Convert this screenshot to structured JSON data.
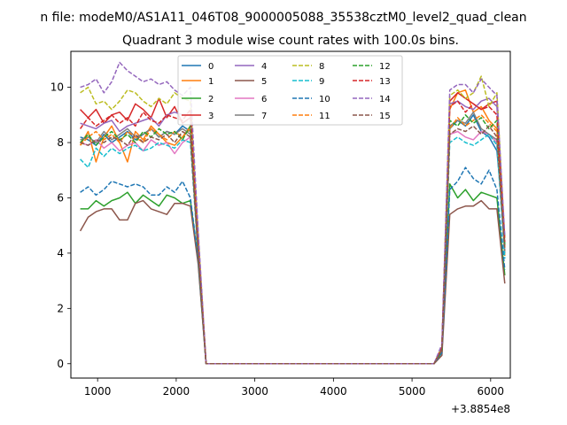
{
  "chart_data": {
    "type": "line",
    "suptitle": "n file: modeM0/AS1A11_046T08_9000005088_35538cztM0_level2_quad_clean",
    "title": "Quadrant 3 module wise count rates with 100.0s bins.",
    "offset_label": "+3.8854e8",
    "xlim": [
      660,
      6250
    ],
    "ylim": [
      -0.52,
      11.3
    ],
    "xticks": [
      1000,
      2000,
      3000,
      4000,
      5000,
      6000
    ],
    "xtick_labels": [
      "1000",
      "2000",
      "3000",
      "4000",
      "5000",
      "6000"
    ],
    "yticks": [
      0,
      2,
      4,
      6,
      8,
      10
    ],
    "ytick_labels": [
      "0",
      "2",
      "4",
      "6",
      "8",
      "10"
    ],
    "legend_position": "upper-center",
    "colors": [
      "#1f77b4",
      "#ff7f0e",
      "#2ca02c",
      "#d62728",
      "#9467bd",
      "#8c564b",
      "#e377c2",
      "#7f7f7f",
      "#bcbd22",
      "#17becf",
      "#1f77b4",
      "#ff7f0e",
      "#2ca02c",
      "#d62728",
      "#9467bd",
      "#8c564b"
    ],
    "x": [
      780,
      880,
      980,
      1080,
      1180,
      1280,
      1380,
      1480,
      1580,
      1680,
      1780,
      1880,
      1980,
      2080,
      2180,
      2280,
      2380,
      2480,
      2580,
      2680,
      2780,
      2880,
      2980,
      3080,
      3180,
      3280,
      3380,
      3480,
      3580,
      3680,
      3780,
      3880,
      3980,
      4080,
      4180,
      4280,
      4380,
      4480,
      4580,
      4680,
      4780,
      4880,
      4980,
      5080,
      5180,
      5280,
      5380,
      5480,
      5580,
      5680,
      5780,
      5880,
      5980,
      6080,
      6180
    ],
    "series": [
      {
        "name": "0",
        "dashed": false,
        "values": [
          8.2,
          8.1,
          7.9,
          8.3,
          8.0,
          8.2,
          8.4,
          8.1,
          8.3,
          8.5,
          8.2,
          8.4,
          8.3,
          8.6,
          8.4,
          4.0,
          0,
          0,
          0,
          0,
          0,
          0,
          0,
          0,
          0,
          0,
          0,
          0,
          0,
          0,
          0,
          0,
          0,
          0,
          0,
          0,
          0,
          0,
          0,
          0,
          0,
          0,
          0,
          0,
          0,
          0,
          0.5,
          8.5,
          8.8,
          8.6,
          9.0,
          8.4,
          8.2,
          7.7,
          4.6
        ]
      },
      {
        "name": "1",
        "dashed": false,
        "values": [
          7.9,
          8.4,
          7.3,
          8.2,
          8.6,
          8.0,
          7.3,
          8.4,
          8.1,
          8.6,
          8.3,
          8.0,
          7.9,
          8.2,
          8.6,
          4.2,
          0,
          0,
          0,
          0,
          0,
          0,
          0,
          0,
          0,
          0,
          0,
          0,
          0,
          0,
          0,
          0,
          0,
          0,
          0,
          0,
          0,
          0,
          0,
          0,
          0,
          0,
          0,
          0,
          0,
          0,
          0.6,
          9.2,
          9.8,
          9.9,
          9.1,
          9.3,
          8.8,
          8.5,
          3.9
        ]
      },
      {
        "name": "2",
        "dashed": false,
        "values": [
          5.6,
          5.6,
          5.9,
          5.7,
          5.9,
          6.0,
          6.2,
          5.8,
          6.1,
          5.9,
          5.7,
          6.1,
          6.0,
          5.8,
          5.9,
          3.7,
          0,
          0,
          0,
          0,
          0,
          0,
          0,
          0,
          0,
          0,
          0,
          0,
          0,
          0,
          0,
          0,
          0,
          0,
          0,
          0,
          0,
          0,
          0,
          0,
          0,
          0,
          0,
          0,
          0,
          0,
          0.4,
          6.5,
          6.0,
          6.3,
          5.9,
          6.2,
          6.1,
          6.0,
          3.2
        ]
      },
      {
        "name": "3",
        "dashed": false,
        "values": [
          9.2,
          8.9,
          9.2,
          8.7,
          9.0,
          9.1,
          8.8,
          9.4,
          9.2,
          8.9,
          9.6,
          8.9,
          9.3,
          8.7,
          8.9,
          4.5,
          0,
          0,
          0,
          0,
          0,
          0,
          0,
          0,
          0,
          0,
          0,
          0,
          0,
          0,
          0,
          0,
          0,
          0,
          0,
          0,
          0,
          0,
          0,
          0,
          0,
          0,
          0,
          0,
          0,
          0,
          0.6,
          9.5,
          9.8,
          9.6,
          9.4,
          9.2,
          9.4,
          9.5,
          4.2
        ]
      },
      {
        "name": "4",
        "dashed": false,
        "values": [
          8.7,
          8.6,
          8.5,
          8.7,
          8.8,
          8.4,
          8.6,
          8.7,
          8.8,
          8.9,
          8.6,
          9.0,
          9.1,
          9.0,
          9.0,
          4.5,
          0,
          0,
          0,
          0,
          0,
          0,
          0,
          0,
          0,
          0,
          0,
          0,
          0,
          0,
          0,
          0,
          0,
          0,
          0,
          0,
          0,
          0,
          0,
          0,
          0,
          0,
          0,
          0,
          0,
          0,
          0.6,
          9.4,
          9.5,
          9.3,
          9.2,
          9.5,
          9.6,
          9.3,
          4.3
        ]
      },
      {
        "name": "5",
        "dashed": false,
        "values": [
          4.8,
          5.3,
          5.5,
          5.6,
          5.6,
          5.2,
          5.2,
          5.8,
          5.9,
          5.6,
          5.5,
          5.4,
          5.8,
          5.8,
          5.7,
          3.6,
          0,
          0,
          0,
          0,
          0,
          0,
          0,
          0,
          0,
          0,
          0,
          0,
          0,
          0,
          0,
          0,
          0,
          0,
          0,
          0,
          0,
          0,
          0,
          0,
          0,
          0,
          0,
          0,
          0,
          0,
          0.3,
          5.4,
          5.6,
          5.7,
          5.7,
          5.9,
          5.6,
          5.6,
          2.9
        ]
      },
      {
        "name": "6",
        "dashed": false,
        "values": [
          8.0,
          7.9,
          8.1,
          7.8,
          8.0,
          7.7,
          7.9,
          8.0,
          7.7,
          8.1,
          7.9,
          8.0,
          7.6,
          8.0,
          8.2,
          4.0,
          0,
          0,
          0,
          0,
          0,
          0,
          0,
          0,
          0,
          0,
          0,
          0,
          0,
          0,
          0,
          0,
          0,
          0,
          0,
          0,
          0,
          0,
          0,
          0,
          0,
          0,
          0,
          0,
          0,
          0,
          0.5,
          8.3,
          8.4,
          8.2,
          8.1,
          8.4,
          8.3,
          8.0,
          4.1
        ]
      },
      {
        "name": "7",
        "dashed": false,
        "values": [
          8.1,
          8.2,
          8.0,
          8.4,
          8.1,
          8.3,
          8.5,
          8.2,
          8.3,
          8.5,
          8.2,
          8.4,
          8.3,
          8.5,
          8.3,
          4.0,
          0,
          0,
          0,
          0,
          0,
          0,
          0,
          0,
          0,
          0,
          0,
          0,
          0,
          0,
          0,
          0,
          0,
          0,
          0,
          0,
          0,
          0,
          0,
          0,
          0,
          0,
          0,
          0,
          0,
          0,
          0.5,
          8.6,
          8.8,
          8.7,
          9.1,
          8.5,
          8.3,
          8.1,
          4.0
        ]
      },
      {
        "name": "8",
        "dashed": true,
        "values": [
          9.8,
          10.0,
          9.4,
          9.5,
          9.2,
          9.5,
          9.9,
          9.8,
          9.5,
          9.3,
          9.6,
          9.4,
          9.8,
          9.6,
          9.5,
          4.7,
          0,
          0,
          0,
          0,
          0,
          0,
          0,
          0,
          0,
          0,
          0,
          0,
          0,
          0,
          0,
          0,
          0,
          0,
          0,
          0,
          0,
          0,
          0,
          0,
          0,
          0,
          0,
          0,
          0,
          0,
          0.6,
          9.7,
          9.9,
          9.6,
          9.8,
          10.4,
          9.3,
          9.8,
          4.5
        ]
      },
      {
        "name": "9",
        "dashed": true,
        "values": [
          7.4,
          7.1,
          7.8,
          7.5,
          7.8,
          7.6,
          7.8,
          7.9,
          7.7,
          7.8,
          8.0,
          7.9,
          7.8,
          8.1,
          8.0,
          3.9,
          0,
          0,
          0,
          0,
          0,
          0,
          0,
          0,
          0,
          0,
          0,
          0,
          0,
          0,
          0,
          0,
          0,
          0,
          0,
          0,
          0,
          0,
          0,
          0,
          0,
          0,
          0,
          0,
          0,
          0,
          0.5,
          8.0,
          8.2,
          8.0,
          7.9,
          8.1,
          8.3,
          7.9,
          3.8
        ]
      },
      {
        "name": "10",
        "dashed": true,
        "values": [
          6.2,
          6.4,
          6.1,
          6.3,
          6.6,
          6.5,
          6.4,
          6.5,
          6.4,
          6.1,
          6.1,
          6.4,
          6.2,
          6.6,
          6.0,
          3.8,
          0,
          0,
          0,
          0,
          0,
          0,
          0,
          0,
          0,
          0,
          0,
          0,
          0,
          0,
          0,
          0,
          0,
          0,
          0,
          0,
          0,
          0,
          0,
          0,
          0,
          0,
          0,
          0,
          0,
          0,
          0.4,
          6.3,
          6.6,
          7.1,
          6.7,
          6.5,
          7.0,
          6.3,
          3.4
        ]
      },
      {
        "name": "11",
        "dashed": true,
        "values": [
          7.9,
          8.2,
          8.4,
          8.1,
          8.3,
          8.0,
          8.4,
          8.2,
          8.0,
          8.5,
          8.3,
          8.1,
          8.4,
          8.2,
          8.5,
          4.1,
          0,
          0,
          0,
          0,
          0,
          0,
          0,
          0,
          0,
          0,
          0,
          0,
          0,
          0,
          0,
          0,
          0,
          0,
          0,
          0,
          0,
          0,
          0,
          0,
          0,
          0,
          0,
          0,
          0,
          0,
          0.5,
          8.5,
          8.9,
          8.6,
          8.8,
          9.0,
          8.7,
          8.4,
          4.2
        ]
      },
      {
        "name": "12",
        "dashed": true,
        "values": [
          8.0,
          8.3,
          7.9,
          8.2,
          8.4,
          8.1,
          8.3,
          8.0,
          8.4,
          8.2,
          8.5,
          8.3,
          8.4,
          8.1,
          8.6,
          4.1,
          0,
          0,
          0,
          0,
          0,
          0,
          0,
          0,
          0,
          0,
          0,
          0,
          0,
          0,
          0,
          0,
          0,
          0,
          0,
          0,
          0,
          0,
          0,
          0,
          0,
          0,
          0,
          0,
          0,
          0,
          0.5,
          8.8,
          8.6,
          9.0,
          8.7,
          8.9,
          8.5,
          8.8,
          4.3
        ]
      },
      {
        "name": "13",
        "dashed": true,
        "values": [
          8.5,
          8.9,
          8.6,
          8.8,
          9.0,
          8.7,
          8.9,
          8.6,
          9.1,
          8.8,
          8.7,
          9.0,
          8.9,
          8.8,
          9.2,
          4.4,
          0,
          0,
          0,
          0,
          0,
          0,
          0,
          0,
          0,
          0,
          0,
          0,
          0,
          0,
          0,
          0,
          0,
          0,
          0,
          0,
          0,
          0,
          0,
          0,
          0,
          0,
          0,
          0,
          0,
          0,
          0.6,
          9.3,
          9.5,
          9.1,
          9.4,
          9.2,
          9.3,
          9.0,
          4.4
        ]
      },
      {
        "name": "14",
        "dashed": true,
        "values": [
          10.0,
          10.1,
          10.3,
          9.8,
          10.2,
          10.9,
          10.6,
          10.4,
          10.2,
          10.3,
          10.1,
          10.2,
          9.9,
          9.7,
          10.0,
          4.8,
          0,
          0,
          0,
          0,
          0,
          0,
          0,
          0,
          0,
          0,
          0,
          0,
          0,
          0,
          0,
          0,
          0,
          0,
          0,
          0,
          0,
          0,
          0,
          0,
          0,
          0,
          0,
          0,
          0,
          0,
          0.7,
          9.9,
          10.1,
          10.1,
          9.8,
          10.3,
          10.0,
          9.7,
          4.6
        ]
      },
      {
        "name": "15",
        "dashed": true,
        "values": [
          8.0,
          7.9,
          8.1,
          8.0,
          8.2,
          8.1,
          7.9,
          8.3,
          8.0,
          8.2,
          8.1,
          8.3,
          8.0,
          8.4,
          8.2,
          4.0,
          0,
          0,
          0,
          0,
          0,
          0,
          0,
          0,
          0,
          0,
          0,
          0,
          0,
          0,
          0,
          0,
          0,
          0,
          0,
          0,
          0,
          0,
          0,
          0,
          0,
          0,
          0,
          0,
          0,
          0,
          0.5,
          8.3,
          8.5,
          8.4,
          8.6,
          8.3,
          8.6,
          8.2,
          4.1
        ]
      }
    ]
  }
}
